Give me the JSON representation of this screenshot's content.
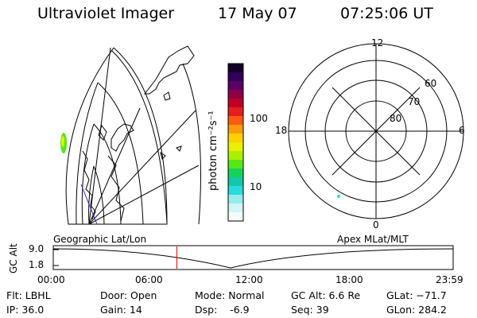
{
  "header": {
    "instrument": "Ultraviolet Imager",
    "date": "17 May 07",
    "time": "07:25:06 UT"
  },
  "geo_panel": {
    "label": "Geographic Lat/Lon"
  },
  "colorbar": {
    "unit_label": "photon cm⁻²s⁻¹",
    "ticks": [
      "100",
      "10"
    ],
    "colors": [
      "#140028",
      "#30005a",
      "#5a0064",
      "#8c0046",
      "#be0028",
      "#e61e1e",
      "#ff5a14",
      "#ff9b0a",
      "#ffd200",
      "#e6f000",
      "#aaf000",
      "#5ae614",
      "#14d25a",
      "#14c8aa",
      "#28dcdc",
      "#96ebeb",
      "#d2f5f5",
      "#f5fafa"
    ]
  },
  "polar_panel": {
    "label": "Apex MLat/MLT",
    "mlt_labels": {
      "top": "12",
      "bottom": "0",
      "left": "18",
      "right": "6"
    },
    "lat_labels": [
      "60",
      "70",
      "80"
    ]
  },
  "timeline": {
    "axis_label": "GC Alt",
    "y_ticks": [
      "9.0",
      "1.8"
    ],
    "time_labels": [
      "00:00",
      "06:00",
      "12:00",
      "18:00",
      "23:59"
    ],
    "current_time_fraction": 0.309,
    "marker_color": "#e00000"
  },
  "info": {
    "flt": "Flt: LBHL",
    "ip": "IP: 36.0",
    "door": "Door: Open",
    "gain": "Gain: 14",
    "mode": "Mode: Normal",
    "dsp": "Dsp:    -6.9",
    "gc_alt": "GC Alt: 6.6 Re",
    "seq": "Seq: 39",
    "glat": "GLat: −71.7",
    "glon": "GLon: 284.2"
  }
}
